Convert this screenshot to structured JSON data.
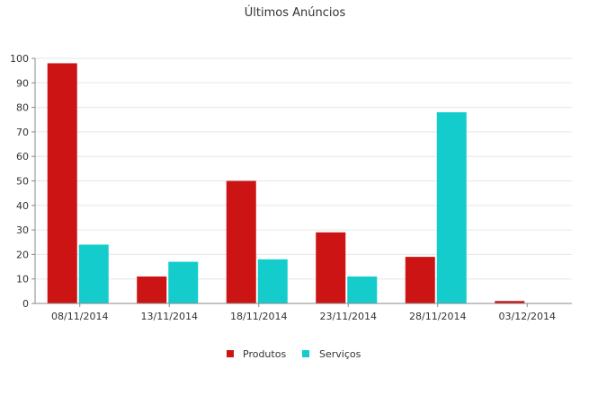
{
  "chart_data": {
    "type": "bar",
    "title": "Últimos Anúncios",
    "categories": [
      "08/11/2014",
      "13/11/2014",
      "18/11/2014",
      "23/11/2014",
      "28/11/2014",
      "03/12/2014"
    ],
    "series": [
      {
        "name": "Produtos",
        "color": "#cc1414",
        "values": [
          98,
          11,
          50,
          29,
          19,
          1
        ]
      },
      {
        "name": "Serviços",
        "color": "#14cccc",
        "values": [
          24,
          17,
          18,
          11,
          78,
          0
        ]
      }
    ],
    "y_ticks": [
      0,
      10,
      20,
      30,
      40,
      50,
      60,
      70,
      80,
      90,
      100
    ],
    "ylim": [
      0,
      100
    ],
    "grid": true,
    "legend_position": "bottom-center",
    "xlabel": "",
    "ylabel": ""
  }
}
